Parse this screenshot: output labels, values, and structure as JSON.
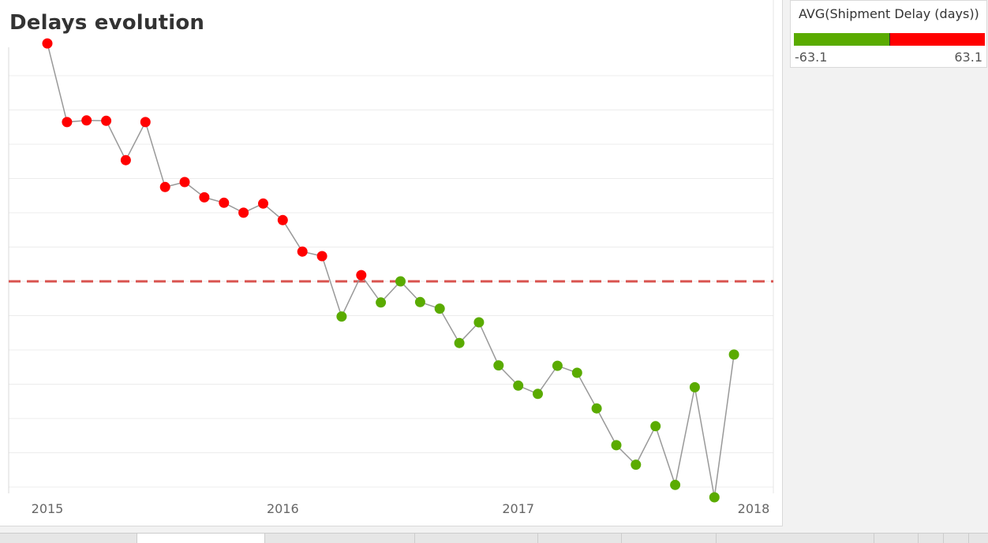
{
  "chart_data": {
    "type": "line",
    "title": "Delays evolution",
    "xlabel": "",
    "ylabel": "",
    "x_ticks": [
      "2015",
      "2016",
      "2017",
      "2018"
    ],
    "x_range": [
      2015.0,
      2018.0
    ],
    "y_range": [
      -63.1,
      63.1
    ],
    "reference_line": {
      "value": 0,
      "color": "#d9534f",
      "style": "dashed"
    },
    "grid": "horizontal",
    "line_color": "#999999",
    "colors": {
      "positive": "#ff0000",
      "negative": "#5aab00"
    },
    "x": [
      "2015-01",
      "2015-02",
      "2015-03",
      "2015-04",
      "2015-05",
      "2015-06",
      "2015-07",
      "2015-08",
      "2015-09",
      "2015-10",
      "2015-11",
      "2015-12",
      "2016-01",
      "2016-02",
      "2016-03",
      "2016-04",
      "2016-05",
      "2016-06",
      "2016-07",
      "2016-08",
      "2016-09",
      "2016-10",
      "2016-11",
      "2016-12",
      "2017-01",
      "2017-02",
      "2017-03",
      "2017-04",
      "2017-05",
      "2017-06",
      "2017-07",
      "2017-08",
      "2017-09",
      "2017-10",
      "2017-11",
      "2017-12"
    ],
    "values": [
      57.5,
      38.5,
      38.9,
      38.8,
      29.3,
      38.5,
      22.8,
      24.0,
      20.3,
      19.0,
      16.6,
      18.8,
      14.8,
      7.2,
      6.1,
      -8.5,
      1.5,
      -5.1,
      0.0,
      -5.0,
      -6.6,
      -14.9,
      -9.9,
      -20.3,
      -25.2,
      -27.2,
      -20.4,
      -22.1,
      -30.7,
      -39.6,
      -44.3,
      -35.0,
      -49.2,
      -25.6,
      -52.2,
      -17.7
    ],
    "legend": {
      "title": "AVG(Shipment Delay (days))",
      "min_label": "-63.1",
      "max_label": "63.1",
      "colors": [
        "#5aab00",
        "#ff0000"
      ]
    }
  }
}
